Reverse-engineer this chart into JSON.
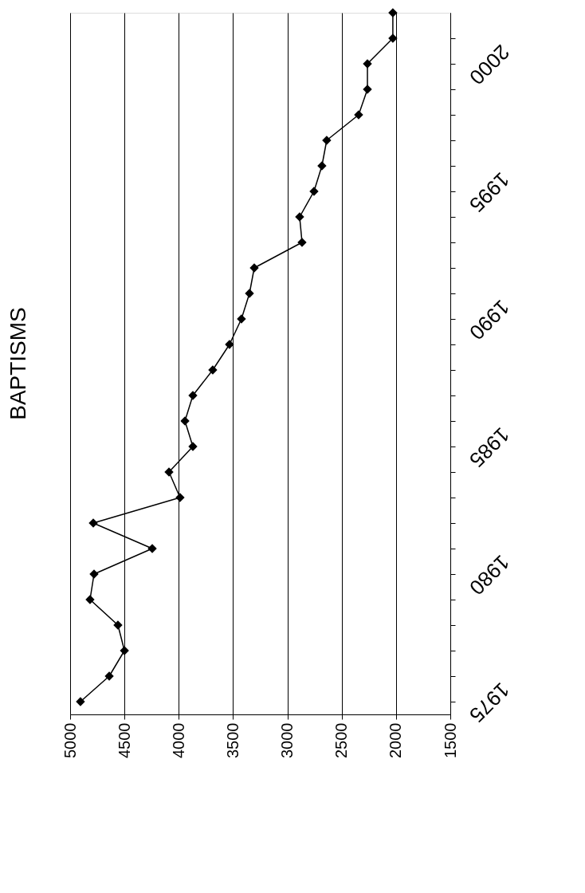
{
  "chart_data": {
    "type": "line",
    "title": "BAPTISMS",
    "orientation": "horizontal",
    "x": [
      1975,
      1976,
      1977,
      1978,
      1979,
      1980,
      1981,
      1982,
      1983,
      1984,
      1985,
      1986,
      1987,
      1988,
      1989,
      1990,
      1991,
      1992,
      1993,
      1994,
      1995,
      1996,
      1997,
      1998,
      1999,
      2000,
      2001,
      2002
    ],
    "series": [
      {
        "color": "#000000",
        "values": [
          4905,
          4640,
          4500,
          4560,
          4817,
          4780,
          4244,
          4787,
          3988,
          4090,
          3870,
          3943,
          3870,
          3687,
          3533,
          3423,
          3349,
          3305,
          2865,
          2887,
          2755,
          2682,
          2638,
          2344,
          2263,
          2263,
          2029,
          2029
        ]
      }
    ],
    "xlim": [
      5000,
      1500
    ],
    "xticks": [
      5000,
      4500,
      4000,
      3500,
      3000,
      2500,
      2000,
      1500
    ],
    "ylim": [
      1974.5,
      2002
    ],
    "yticks": [
      1975,
      {
        "value": 1976,
        "label": null
      },
      {
        "value": 1977,
        "label": null
      },
      {
        "value": 1978,
        "label": null
      },
      {
        "value": 1979,
        "label": null
      },
      1980,
      {
        "value": 1981,
        "label": null
      },
      {
        "value": 1982,
        "label": null
      },
      {
        "value": 1983,
        "label": null
      },
      {
        "value": 1984,
        "label": null
      },
      1985,
      {
        "value": 1986,
        "label": null
      },
      {
        "value": 1987,
        "label": null
      },
      {
        "value": 1988,
        "label": null
      },
      {
        "value": 1989,
        "label": null
      },
      1990,
      {
        "value": 1991,
        "label": null
      },
      {
        "value": 1992,
        "label": null
      },
      {
        "value": 1993,
        "label": null
      },
      {
        "value": 1994,
        "label": null
      },
      1995,
      {
        "value": 1996,
        "label": null
      },
      {
        "value": 1997,
        "label": null
      },
      {
        "value": 1998,
        "label": null
      },
      {
        "value": 1999,
        "label": null
      },
      2000,
      {
        "value": 2001,
        "label": null
      }
    ],
    "grid": "x",
    "marker": "diamond",
    "line_style": "solid"
  }
}
